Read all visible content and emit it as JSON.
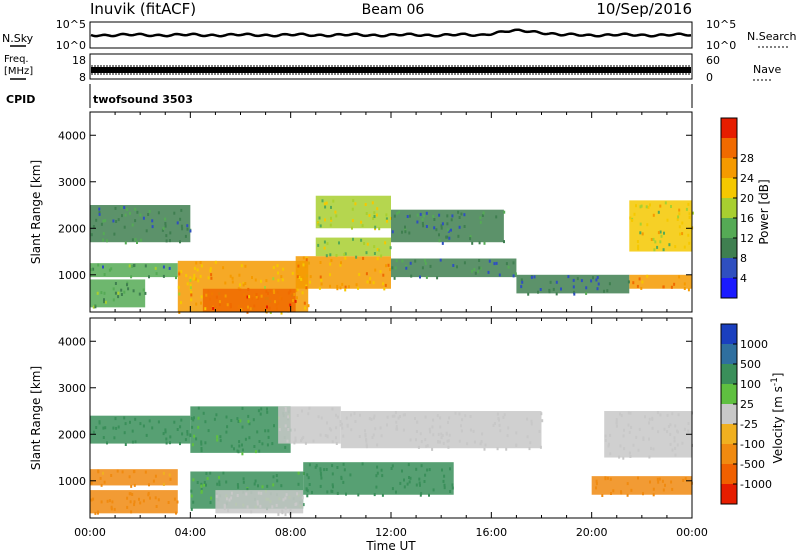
{
  "header": {
    "station": "Inuvik (fitACF)",
    "beam": "Beam 06",
    "date": "10/Sep/2016"
  },
  "noise_panel": {
    "left_label": "N.Sky",
    "right_label": "N.Search",
    "tick_top": "10^5",
    "tick_bottom": "10^0"
  },
  "freq_panel": {
    "left_label_top": "Freq.",
    "left_label_bottom": "[MHz]",
    "left_tick_top": "18",
    "left_tick_bottom": "8",
    "right_label": "Nave",
    "right_tick_top": "60",
    "right_tick_bottom": "0"
  },
  "cpid_panel": {
    "label": "CPID",
    "program": "twofsound 3503"
  },
  "chart_data": [
    {
      "type": "heatmap",
      "name": "power",
      "ylabel": "Slant Range [km]",
      "ylim": [
        200,
        4500
      ],
      "xlim": [
        0,
        24
      ],
      "yticks": [
        "1000",
        "2000",
        "3000",
        "4000"
      ],
      "colorbar": {
        "label": "Power [dB]",
        "tick_labels": [
          "4",
          "8",
          "12",
          "16",
          "20",
          "24",
          "28"
        ],
        "colors": [
          "#1a1aff",
          "#2f4fc0",
          "#3f7f50",
          "#55aa55",
          "#a8cf30",
          "#f5c800",
          "#f59a00",
          "#f06a00",
          "#e61d00"
        ]
      },
      "regions": [
        {
          "x": [
            0,
            2.2
          ],
          "y": [
            300,
            900
          ],
          "value": 13
        },
        {
          "x": [
            0,
            3.5
          ],
          "y": [
            950,
            1250
          ],
          "value": 12
        },
        {
          "x": [
            0,
            4
          ],
          "y": [
            1700,
            2500
          ],
          "value": 11
        },
        {
          "x": [
            3.5,
            8.7
          ],
          "y": [
            200,
            1300
          ],
          "value": 24
        },
        {
          "x": [
            4.5,
            8.2
          ],
          "y": [
            200,
            700
          ],
          "value": 28
        },
        {
          "x": [
            8.2,
            12
          ],
          "y": [
            700,
            1400
          ],
          "value": 25
        },
        {
          "x": [
            9,
            12
          ],
          "y": [
            1400,
            1800
          ],
          "value": 17
        },
        {
          "x": [
            9,
            12
          ],
          "y": [
            2000,
            2700
          ],
          "value": 19
        },
        {
          "x": [
            12,
            17
          ],
          "y": [
            950,
            1350
          ],
          "value": 11
        },
        {
          "x": [
            12,
            16.5
          ],
          "y": [
            1700,
            2400
          ],
          "value": 10
        },
        {
          "x": [
            21.5,
            24
          ],
          "y": [
            700,
            1000
          ],
          "value": 27
        },
        {
          "x": [
            21.5,
            24
          ],
          "y": [
            1500,
            2600
          ],
          "value": 20
        },
        {
          "x": [
            17,
            21.5
          ],
          "y": [
            600,
            1000
          ],
          "value": 8
        }
      ]
    },
    {
      "type": "heatmap",
      "name": "velocity",
      "ylabel": "Slant Range [km]",
      "xlabel": "Time UT",
      "ylim": [
        200,
        4500
      ],
      "xlim": [
        0,
        24
      ],
      "yticks": [
        "1000",
        "2000",
        "3000",
        "4000"
      ],
      "xticks": [
        "00:00",
        "04:00",
        "08:00",
        "12:00",
        "16:00",
        "20:00",
        "00:00"
      ],
      "colorbar": {
        "label": "Velocity [m s^-1]",
        "tick_labels": [
          "1000",
          "500",
          "100",
          "25",
          "-25",
          "-100",
          "-500",
          "-1000"
        ],
        "colors": [
          "#1a3fbf",
          "#2f6f9f",
          "#3a8f5a",
          "#5fc040",
          "#c8c8c8",
          "#f0b020",
          "#f08a10",
          "#f06000",
          "#e61d00"
        ]
      },
      "regions": [
        {
          "x": [
            0,
            3.5
          ],
          "y": [
            300,
            800
          ],
          "value": -300
        },
        {
          "x": [
            0,
            3.5
          ],
          "y": [
            900,
            1250
          ],
          "value": -150
        },
        {
          "x": [
            0,
            4
          ],
          "y": [
            1800,
            2400
          ],
          "value": 200
        },
        {
          "x": [
            4,
            8.5
          ],
          "y": [
            400,
            1200
          ],
          "value": 120
        },
        {
          "x": [
            5,
            8.5
          ],
          "y": [
            300,
            800
          ],
          "value": 0
        },
        {
          "x": [
            4,
            8
          ],
          "y": [
            1600,
            2600
          ],
          "value": 150
        },
        {
          "x": [
            7.5,
            10
          ],
          "y": [
            1800,
            2600
          ],
          "value": 0
        },
        {
          "x": [
            8.5,
            14.5
          ],
          "y": [
            700,
            1400
          ],
          "value": 200
        },
        {
          "x": [
            10,
            18
          ],
          "y": [
            1700,
            2500
          ],
          "value": 0
        },
        {
          "x": [
            20,
            24
          ],
          "y": [
            700,
            1100
          ],
          "value": -300
        },
        {
          "x": [
            20.5,
            24
          ],
          "y": [
            1500,
            2500
          ],
          "value": 0
        }
      ]
    }
  ]
}
